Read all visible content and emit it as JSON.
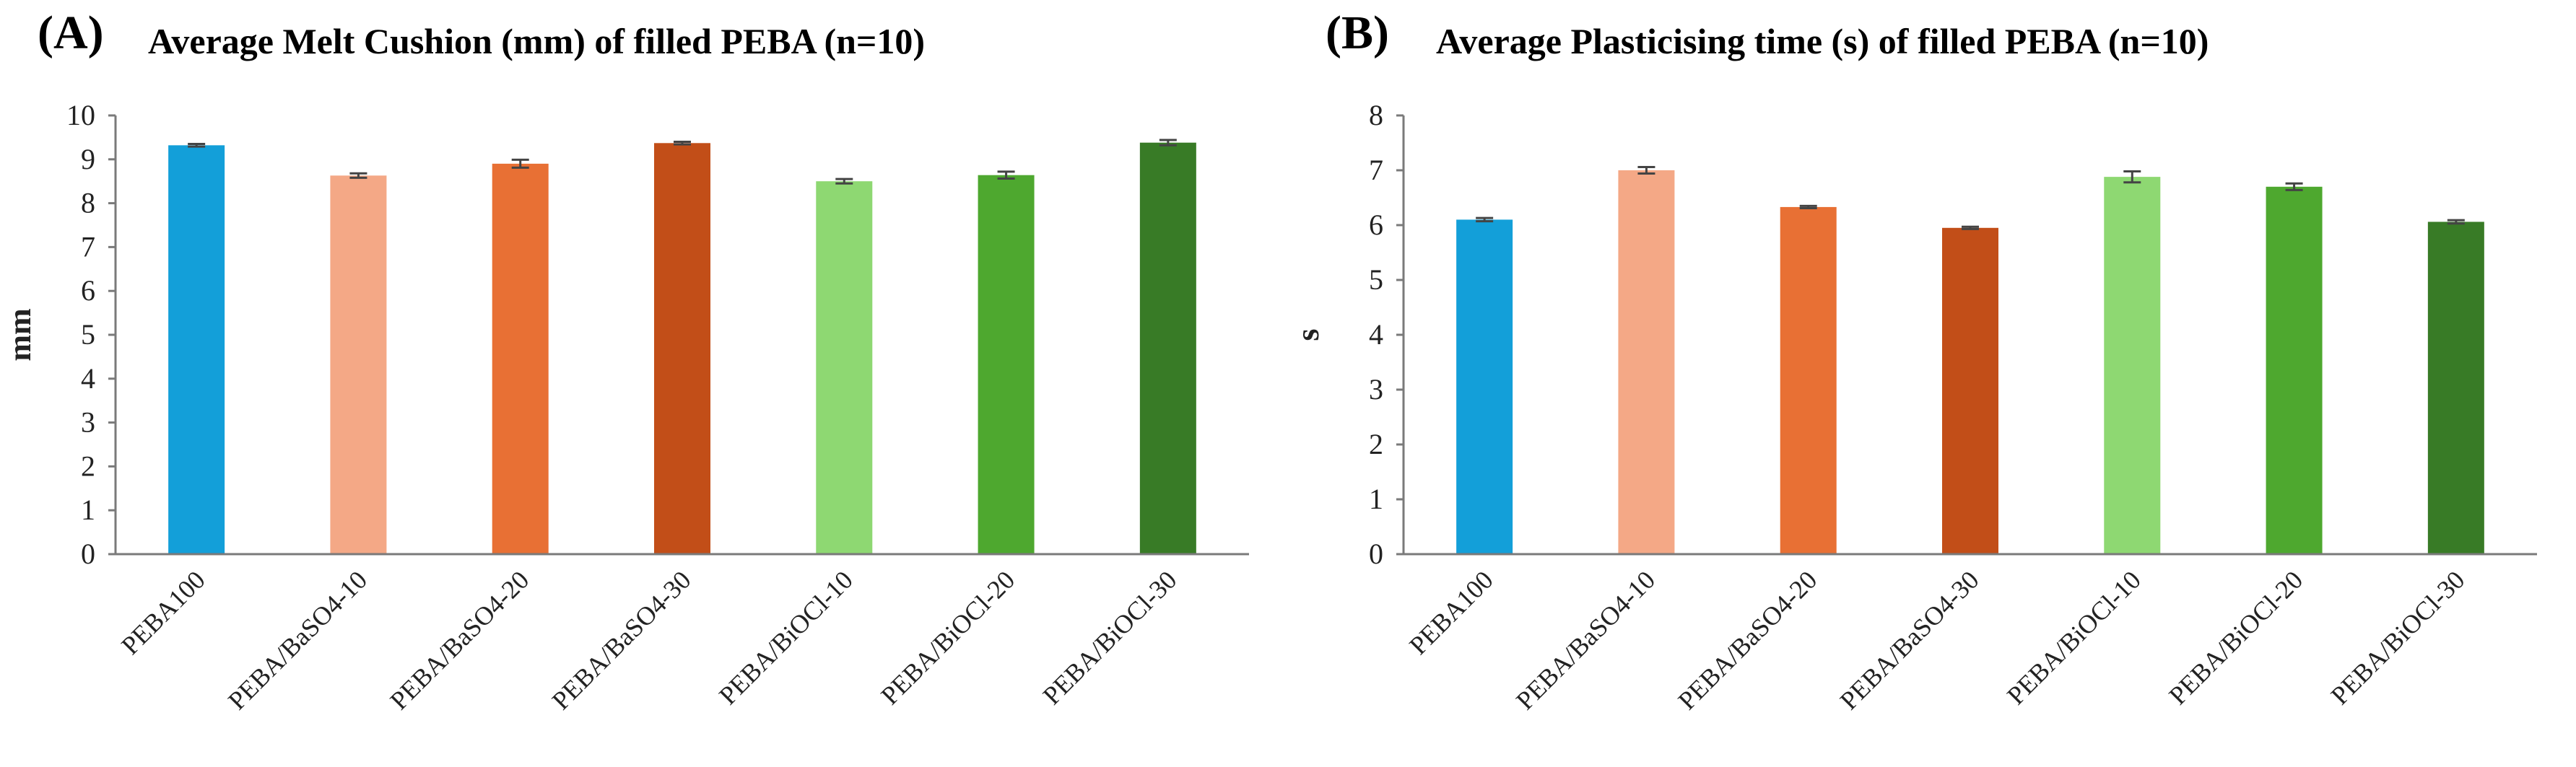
{
  "chart_data": [
    {
      "type": "bar",
      "panel_label": "(A)",
      "title": "Average Melt Cushion (mm) of filled PEBA (n=10)",
      "xlabel": "",
      "ylabel": "mm",
      "ylim": [
        0,
        10
      ],
      "yticks": [
        "0",
        "1",
        "2",
        "3",
        "4",
        "5",
        "6",
        "7",
        "8",
        "9",
        "10"
      ],
      "categories": [
        "PEBA100",
        "PEBA/BaSO4-10",
        "PEBA/BaSO4-20",
        "PEBA/BaSO4-30",
        "PEBA/BiOCl-10",
        "PEBA/BiOCl-20",
        "PEBA/BiOCl-30"
      ],
      "values": [
        9.32,
        8.63,
        8.9,
        9.37,
        8.5,
        8.64,
        9.38
      ],
      "errors": [
        0.03,
        0.05,
        0.09,
        0.03,
        0.05,
        0.08,
        0.06
      ],
      "colors": [
        "#139fd9",
        "#f4a886",
        "#e87034",
        "#c24e18",
        "#8ed872",
        "#4ea82f",
        "#387b26"
      ],
      "grid": false
    },
    {
      "type": "bar",
      "panel_label": "(B)",
      "title": "Average Plasticising time (s) of filled PEBA (n=10)",
      "xlabel": "",
      "ylabel": "s",
      "ylim": [
        0,
        8
      ],
      "yticks": [
        "0",
        "1",
        "2",
        "3",
        "4",
        "5",
        "6",
        "7",
        "8"
      ],
      "categories": [
        "PEBA100",
        "PEBA/BaSO4-10",
        "PEBA/BaSO4-20",
        "PEBA/BaSO4-30",
        "PEBA/BiOCl-10",
        "PEBA/BiOCl-20",
        "PEBA/BiOCl-30"
      ],
      "values": [
        6.1,
        7.0,
        6.33,
        5.95,
        6.88,
        6.7,
        6.06
      ],
      "errors": [
        0.03,
        0.06,
        0.02,
        0.02,
        0.1,
        0.06,
        0.03
      ],
      "colors": [
        "#139fd9",
        "#f4a886",
        "#e87034",
        "#c24e18",
        "#8ed872",
        "#4ea82f",
        "#387b26"
      ],
      "grid": false
    }
  ]
}
